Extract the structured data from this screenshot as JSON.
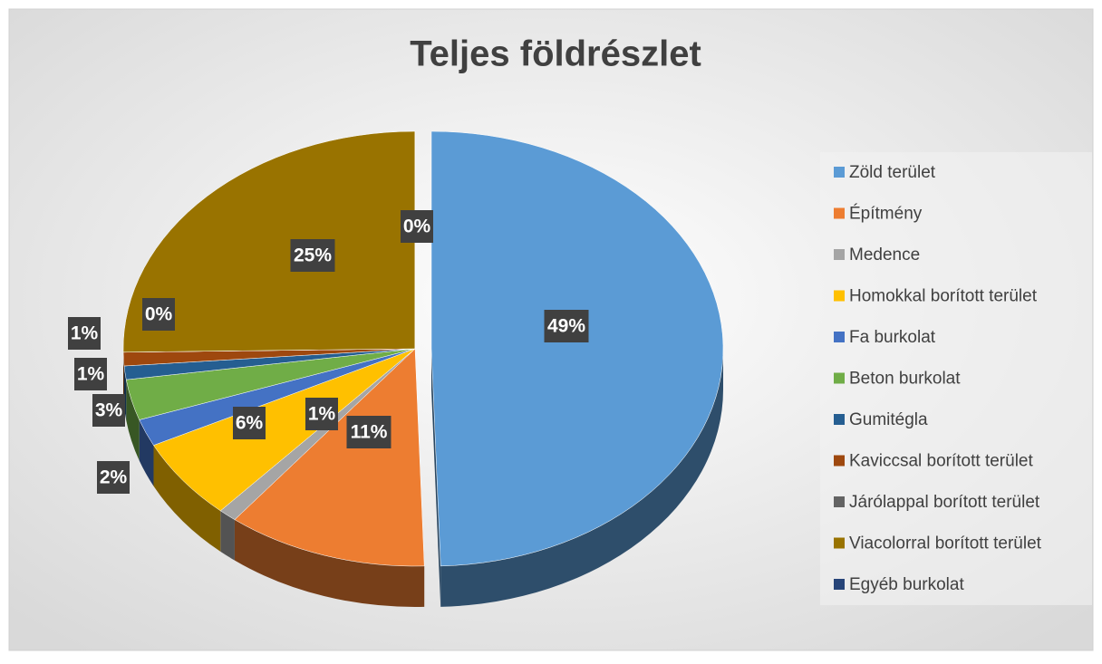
{
  "chart_data": {
    "type": "pie",
    "title": "Teljes földrészlet",
    "categories": [
      "Zöld terület",
      "Építmény",
      "Medence",
      "Homokkal borított terület",
      "Fa burkolat",
      "Beton burkolat",
      "Gumitégla",
      "Kaviccsal borított terület",
      "Járólappal borított terület",
      "Viacolorral borított terület",
      "Egyéb burkolat"
    ],
    "values": [
      49,
      11,
      1,
      6,
      2,
      3,
      1,
      1,
      0,
      25,
      0
    ],
    "value_labels": [
      "49%",
      "11%",
      "1%",
      "6%",
      "2%",
      "3%",
      "1%",
      "1%",
      "0%",
      "25%",
      "0%"
    ],
    "colors": [
      "#5b9bd5",
      "#ed7d31",
      "#a5a5a5",
      "#ffc000",
      "#4472c4",
      "#70ad47",
      "#255e91",
      "#9e480e",
      "#636363",
      "#997300",
      "#264478"
    ],
    "legend": "right"
  }
}
